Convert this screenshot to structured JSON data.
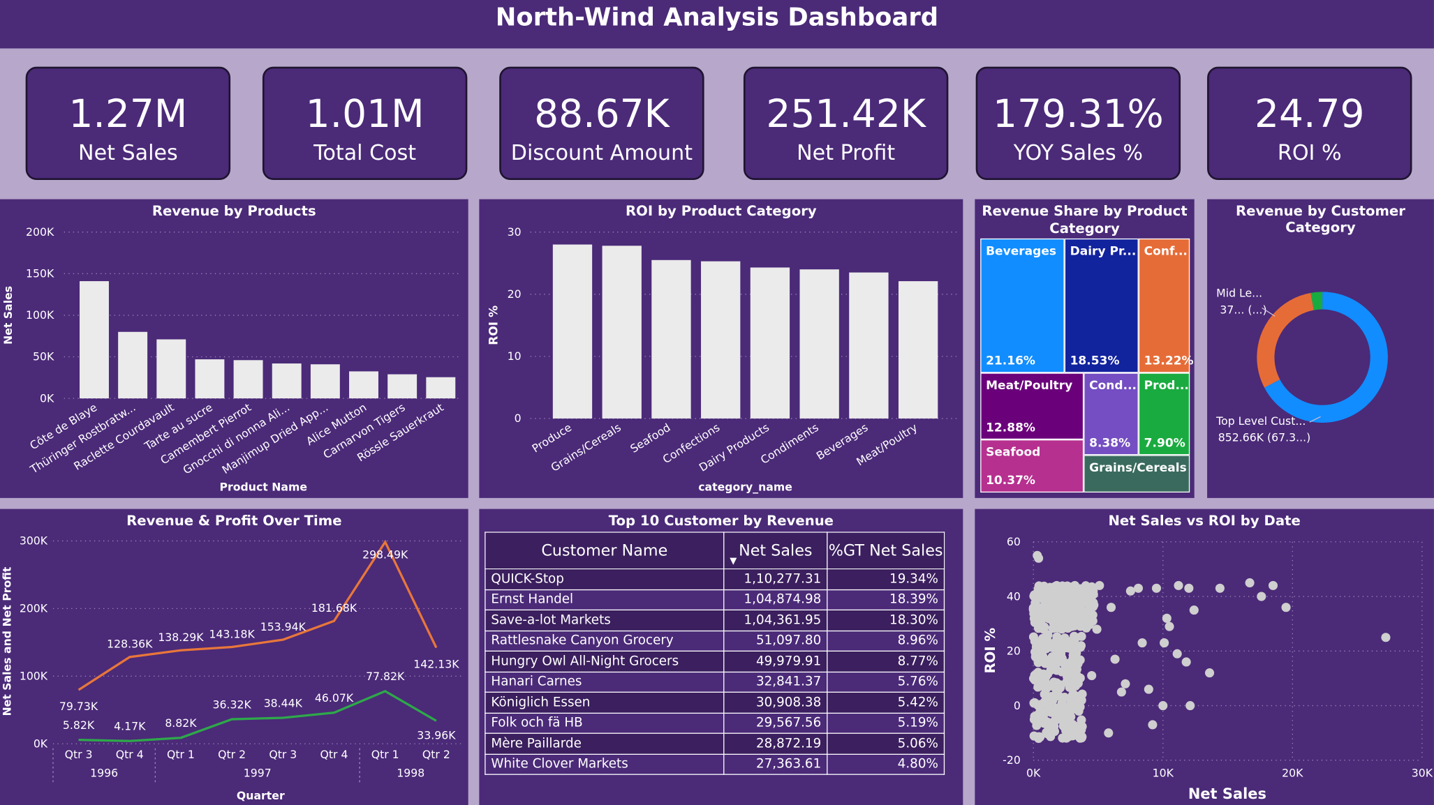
{
  "header": {
    "title": "North-Wind Analysis Dashboard"
  },
  "kpis": [
    {
      "value": "1.27M",
      "label": "Net Sales"
    },
    {
      "value": "1.01M",
      "label": "Total Cost"
    },
    {
      "value": "88.67K",
      "label": "Discount Amount"
    },
    {
      "value": "251.42K",
      "label": "Net Profit"
    },
    {
      "value": "179.31%",
      "label": "YOY Sales %"
    },
    {
      "value": "24.79",
      "label": "ROI %"
    }
  ],
  "colors": {
    "background": "#b7a7cb",
    "panel": "#4b2a78",
    "bar": "#ebebeb",
    "revenue_line": "#e8773a",
    "profit_line": "#2ea84a"
  },
  "chart_data": [
    {
      "type": "bar",
      "title": "Revenue by Products",
      "xlabel": "Product Name",
      "ylabel": "Net Sales",
      "ylim": [
        0,
        200000
      ],
      "yticks": [
        "0K",
        "50K",
        "100K",
        "150K",
        "200K"
      ],
      "categories": [
        "Côte de Blaye",
        "Thüringer Rostbratw...",
        "Raclette Courdavault",
        "Tarte au sucre",
        "Camembert Pierrot",
        "Gnocchi di nonna Ali...",
        "Manjimup Dried App...",
        "Alice Mutton",
        "Carnarvon Tigers",
        "Rössle Sauerkraut"
      ],
      "values": [
        141000,
        80000,
        71000,
        47000,
        46000,
        42000,
        41000,
        32500,
        29000,
        25500
      ]
    },
    {
      "type": "bar",
      "title": "ROI by Product Category",
      "xlabel": "category_name",
      "ylabel": "ROI %",
      "ylim": [
        0,
        30
      ],
      "yticks": [
        "0",
        "10",
        "20",
        "30"
      ],
      "categories": [
        "Produce",
        "Grains/Cereals",
        "Seafood",
        "Confections",
        "Dairy Products",
        "Condiments",
        "Beverages",
        "Meat/Poultry"
      ],
      "values": [
        28.0,
        27.8,
        25.5,
        25.3,
        24.3,
        24.0,
        23.5,
        22.1
      ]
    },
    {
      "type": "treemap",
      "title": "Revenue Share by Product Category",
      "items": [
        {
          "name": "Beverages",
          "percent": "21.16%",
          "color": "#118dff"
        },
        {
          "name": "Dairy Pr...",
          "percent": "18.53%",
          "color": "#12239e"
        },
        {
          "name": "Conf...",
          "percent": "13.22%",
          "color": "#e66c37"
        },
        {
          "name": "Meat/Poultry",
          "percent": "12.88%",
          "color": "#6b007b"
        },
        {
          "name": "Cond...",
          "percent": "8.38%",
          "color": "#744ec2"
        },
        {
          "name": "Prod...",
          "percent": "7.90%",
          "color": "#1aab40"
        },
        {
          "name": "Seafood",
          "percent": "10.37%",
          "color": "#b6308f"
        },
        {
          "name": "Grains/Cereals",
          "percent": "",
          "color": "#3a6a5e"
        }
      ]
    },
    {
      "type": "pie",
      "title": "Revenue by Customer Category",
      "slices": [
        {
          "name": "Top Level Cust...",
          "label": "852.66K (67.3...)",
          "value": 67.3,
          "color": "#118dff"
        },
        {
          "name": "Mid Le...",
          "label": "37... (...)",
          "value": 29.8,
          "color": "#e66c37"
        },
        {
          "name": "",
          "label": "",
          "value": 2.9,
          "color": "#1aab40"
        }
      ]
    },
    {
      "type": "line",
      "title": "Revenue & Profit Over Time",
      "xlabel": "Quarter",
      "ylabel": "Net Sales and Net Profit",
      "ylim": [
        0,
        300000
      ],
      "yticks": [
        "0K",
        "100K",
        "200K",
        "300K"
      ],
      "categories": [
        "Qtr 3",
        "Qtr 4",
        "Qtr 1",
        "Qtr 2",
        "Qtr 3",
        "Qtr 4",
        "Qtr 1",
        "Qtr 2"
      ],
      "years": [
        "1996",
        "1997",
        "1998"
      ],
      "series": [
        {
          "name": "Net Sales",
          "values": [
            79730,
            128360,
            138290,
            143180,
            153940,
            181680,
            298490,
            142130
          ],
          "labels": [
            "79.73K",
            "128.36K",
            "138.29K",
            "143.18K",
            "153.94K",
            "181.68K",
            "298.49K",
            "142.13K"
          ]
        },
        {
          "name": "Net Profit",
          "values": [
            5820,
            4170,
            8820,
            36320,
            38440,
            46070,
            77820,
            33960
          ],
          "labels": [
            "5.82K",
            "4.17K",
            "8.82K",
            "36.32K",
            "38.44K",
            "46.07K",
            "77.82K",
            "33.96K"
          ]
        }
      ]
    },
    {
      "type": "table",
      "title": "Top 10 Customer by Revenue",
      "columns": [
        "Customer Name",
        "Net Sales",
        "%GT Net Sales"
      ],
      "rows": [
        [
          "QUICK-Stop",
          "1,10,277.31",
          "19.34%"
        ],
        [
          "Ernst Handel",
          "1,04,874.98",
          "18.39%"
        ],
        [
          "Save-a-lot Markets",
          "1,04,361.95",
          "18.30%"
        ],
        [
          "Rattlesnake Canyon Grocery",
          "51,097.80",
          "8.96%"
        ],
        [
          "Hungry Owl All-Night Grocers",
          "49,979.91",
          "8.77%"
        ],
        [
          "Hanari Carnes",
          "32,841.37",
          "5.76%"
        ],
        [
          "Königlich Essen",
          "30,908.38",
          "5.42%"
        ],
        [
          "Folk och fä HB",
          "29,567.56",
          "5.19%"
        ],
        [
          "Mère Paillarde",
          "28,872.19",
          "5.06%"
        ],
        [
          "White Clover Markets",
          "27,363.61",
          "4.80%"
        ]
      ]
    },
    {
      "type": "scatter",
      "title": "Net Sales vs ROI by Date",
      "xlabel": "Net Sales",
      "ylabel": "ROI %",
      "xlim": [
        0,
        30000
      ],
      "ylim": [
        -20,
        60
      ],
      "xticks": [
        "0K",
        "10K",
        "20K",
        "30K"
      ],
      "yticks": [
        "-20",
        "0",
        "20",
        "40",
        "60"
      ],
      "points": [
        [
          300,
          55
        ],
        [
          400,
          54
        ],
        [
          1800,
          44
        ],
        [
          3200,
          44
        ],
        [
          5100,
          44
        ],
        [
          7500,
          42
        ],
        [
          8100,
          43
        ],
        [
          9500,
          43
        ],
        [
          10300,
          32
        ],
        [
          10500,
          29
        ],
        [
          11200,
          44
        ],
        [
          12000,
          43
        ],
        [
          12400,
          35
        ],
        [
          14400,
          43
        ],
        [
          16700,
          45
        ],
        [
          17600,
          40
        ],
        [
          18500,
          44
        ],
        [
          19500,
          36
        ],
        [
          27200,
          25
        ],
        [
          8900,
          6
        ],
        [
          8400,
          23
        ],
        [
          6300,
          17
        ],
        [
          6800,
          5
        ],
        [
          2200,
          -5
        ],
        [
          3500,
          -2
        ],
        [
          5800,
          -10
        ],
        [
          9200,
          -7
        ],
        [
          10000,
          0
        ],
        [
          10100,
          23
        ],
        [
          11100,
          19
        ],
        [
          11800,
          16
        ],
        [
          12100,
          0
        ],
        [
          13600,
          12
        ],
        [
          2900,
          -11
        ],
        [
          400,
          -12
        ],
        [
          7100,
          8
        ],
        [
          4500,
          11
        ],
        [
          1500,
          2
        ],
        [
          6000,
          36
        ],
        [
          4900,
          28
        ],
        [
          3100,
          8
        ]
      ],
      "dense_regions": [
        {
          "x": [
            0,
            4800
          ],
          "y": [
            28,
            44
          ]
        },
        {
          "x": [
            0,
            3800
          ],
          "y": [
            -12,
            26
          ]
        }
      ]
    }
  ]
}
